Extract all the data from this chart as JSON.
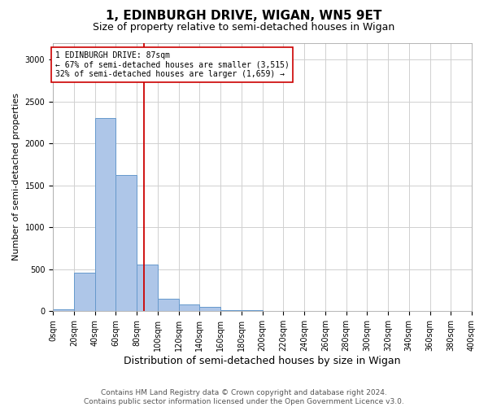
{
  "title": "1, EDINBURGH DRIVE, WIGAN, WN5 9ET",
  "subtitle": "Size of property relative to semi-detached houses in Wigan",
  "xlabel": "Distribution of semi-detached houses by size in Wigan",
  "ylabel": "Number of semi-detached properties",
  "bar_lefts": [
    0,
    20,
    40,
    60,
    80,
    100,
    120,
    140,
    160,
    180,
    200,
    220,
    240,
    260,
    280,
    300,
    320,
    340,
    360,
    380
  ],
  "bar_values": [
    20,
    460,
    2300,
    1620,
    560,
    150,
    80,
    50,
    10,
    10,
    5,
    5,
    5,
    5,
    5,
    5,
    5,
    5,
    5,
    5
  ],
  "bin_edges": [
    0,
    20,
    40,
    60,
    80,
    100,
    120,
    140,
    160,
    180,
    200,
    220,
    240,
    260,
    280,
    300,
    320,
    340,
    360,
    380,
    400
  ],
  "bar_color": "#aec6e8",
  "bar_edgecolor": "#6699cc",
  "property_size": 87,
  "annotation_line_color": "#cc0000",
  "annotation_box_color": "#cc0000",
  "annotation_text_line1": "1 EDINBURGH DRIVE: 87sqm",
  "annotation_text_line2": "← 67% of semi-detached houses are smaller (3,515)",
  "annotation_text_line3": "32% of semi-detached houses are larger (1,659) →",
  "ylim": [
    0,
    3200
  ],
  "yticks": [
    0,
    500,
    1000,
    1500,
    2000,
    2500,
    3000
  ],
  "xtick_labels": [
    "0sqm",
    "20sqm",
    "40sqm",
    "60sqm",
    "80sqm",
    "100sqm",
    "120sqm",
    "140sqm",
    "160sqm",
    "180sqm",
    "200sqm",
    "220sqm",
    "240sqm",
    "260sqm",
    "280sqm",
    "300sqm",
    "320sqm",
    "340sqm",
    "360sqm",
    "380sqm",
    "400sqm"
  ],
  "footer_line1": "Contains HM Land Registry data © Crown copyright and database right 2024.",
  "footer_line2": "Contains public sector information licensed under the Open Government Licence v3.0.",
  "background_color": "#ffffff",
  "grid_color": "#d0d0d0",
  "title_fontsize": 11,
  "subtitle_fontsize": 9,
  "axis_label_fontsize": 8,
  "tick_fontsize": 7,
  "footer_fontsize": 6.5,
  "annotation_fontsize": 7
}
